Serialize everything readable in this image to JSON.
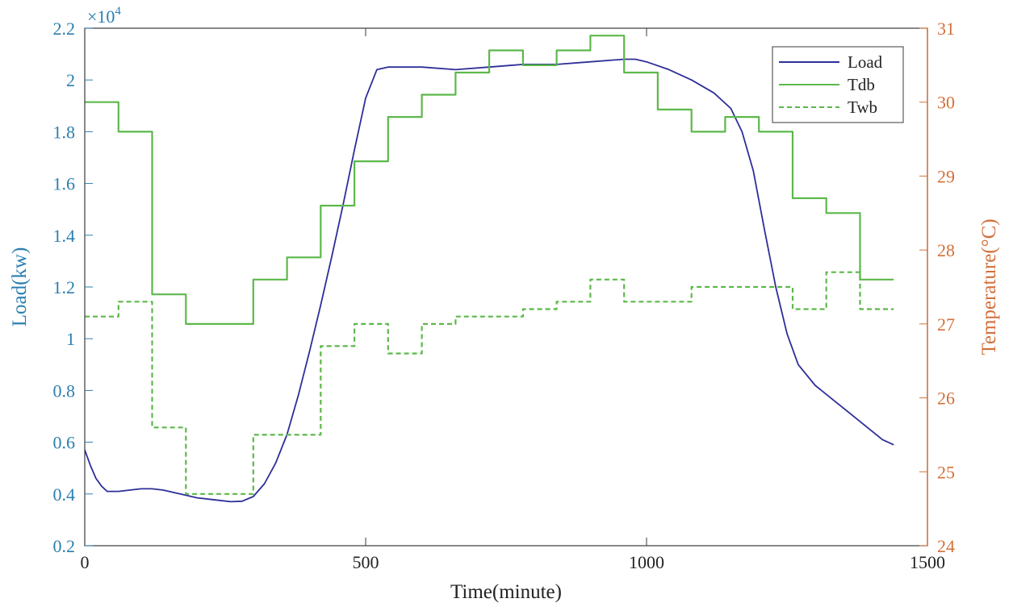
{
  "chart_data": {
    "type": "line",
    "title": "",
    "xlabel": "Time(minute)",
    "ylabel_left": "Load(kw)",
    "ylabel_right": "Temperature(°C)",
    "left_axis_multiplier": "×10",
    "left_axis_exponent": "4",
    "xlim": [
      0,
      1500
    ],
    "ylim_left": [
      0.2,
      2.2
    ],
    "ylim_right": [
      24,
      31
    ],
    "x_ticks": [
      0,
      500,
      1000,
      1500
    ],
    "x_tick_labels": [
      "0",
      "500",
      "1000",
      "1500"
    ],
    "y_left_ticks": [
      0.2,
      0.4,
      0.6,
      0.8,
      1.0,
      1.2,
      1.4,
      1.6,
      1.8,
      2.0,
      2.2
    ],
    "y_left_tick_labels": [
      "0.2",
      "0.4",
      "0.6",
      "0.8",
      "1",
      "1.2",
      "1.4",
      "1.6",
      "1.8",
      "2",
      "2.2"
    ],
    "y_right_ticks": [
      24,
      25,
      26,
      27,
      28,
      29,
      30,
      31
    ],
    "y_right_tick_labels": [
      "24",
      "25",
      "26",
      "27",
      "28",
      "29",
      "30",
      "31"
    ],
    "grid": false,
    "legend_position": "top-right",
    "colors": {
      "load": "#2e2e9a",
      "tdb": "#5cb84a",
      "twb": "#5cb84a",
      "left_axis": "#2a7fb0",
      "right_axis": "#d2703a",
      "frame": "#3a3a3a",
      "text": "#222222"
    },
    "series": [
      {
        "name": "Load",
        "axis": "left",
        "style": "solid",
        "x": [
          0,
          10,
          20,
          30,
          40,
          60,
          80,
          100,
          120,
          140,
          160,
          180,
          200,
          220,
          240,
          260,
          280,
          300,
          320,
          340,
          360,
          380,
          400,
          420,
          440,
          460,
          480,
          500,
          520,
          540,
          560,
          580,
          600,
          660,
          720,
          780,
          840,
          900,
          960,
          980,
          1000,
          1040,
          1080,
          1120,
          1150,
          1170,
          1190,
          1210,
          1230,
          1250,
          1270,
          1300,
          1340,
          1380,
          1420,
          1440
        ],
        "y": [
          0.57,
          0.51,
          0.46,
          0.43,
          0.41,
          0.41,
          0.415,
          0.42,
          0.42,
          0.415,
          0.405,
          0.395,
          0.385,
          0.38,
          0.375,
          0.37,
          0.372,
          0.39,
          0.44,
          0.52,
          0.63,
          0.78,
          0.95,
          1.13,
          1.32,
          1.52,
          1.73,
          1.93,
          2.04,
          2.05,
          2.05,
          2.05,
          2.05,
          2.04,
          2.05,
          2.06,
          2.06,
          2.07,
          2.08,
          2.08,
          2.07,
          2.04,
          2.0,
          1.95,
          1.89,
          1.8,
          1.65,
          1.42,
          1.2,
          1.02,
          0.9,
          0.82,
          0.75,
          0.68,
          0.61,
          0.59
        ]
      },
      {
        "name": "Tdb",
        "axis": "right",
        "style": "solid",
        "x": [
          0,
          60,
          60,
          120,
          120,
          180,
          180,
          300,
          300,
          360,
          360,
          420,
          420,
          480,
          480,
          540,
          540,
          600,
          600,
          660,
          660,
          720,
          720,
          780,
          780,
          840,
          840,
          900,
          900,
          960,
          960,
          1020,
          1020,
          1080,
          1080,
          1140,
          1140,
          1200,
          1200,
          1260,
          1260,
          1320,
          1320,
          1380,
          1380,
          1440
        ],
        "y": [
          30.0,
          30.0,
          29.6,
          29.6,
          27.4,
          27.4,
          27.0,
          27.0,
          27.6,
          27.6,
          27.9,
          27.9,
          28.6,
          28.6,
          29.2,
          29.2,
          29.8,
          29.8,
          30.1,
          30.1,
          30.4,
          30.4,
          30.7,
          30.7,
          30.5,
          30.5,
          30.7,
          30.7,
          30.9,
          30.9,
          30.4,
          30.4,
          29.9,
          29.9,
          29.6,
          29.6,
          29.8,
          29.8,
          29.6,
          29.6,
          28.7,
          28.7,
          28.5,
          28.5,
          27.6,
          27.6
        ]
      },
      {
        "name": "Twb",
        "axis": "right",
        "style": "dashed",
        "x": [
          0,
          60,
          60,
          120,
          120,
          180,
          180,
          300,
          300,
          360,
          360,
          420,
          420,
          480,
          480,
          540,
          540,
          600,
          600,
          660,
          660,
          720,
          720,
          780,
          780,
          840,
          840,
          900,
          900,
          960,
          960,
          1020,
          1020,
          1080,
          1080,
          1140,
          1140,
          1200,
          1200,
          1260,
          1260,
          1320,
          1320,
          1380,
          1380,
          1440
        ],
        "y": [
          27.1,
          27.1,
          27.3,
          27.3,
          25.6,
          25.6,
          24.7,
          24.7,
          25.5,
          25.5,
          25.5,
          25.5,
          26.7,
          26.7,
          27.0,
          27.0,
          26.6,
          26.6,
          27.0,
          27.0,
          27.1,
          27.1,
          27.1,
          27.1,
          27.2,
          27.2,
          27.3,
          27.3,
          27.6,
          27.6,
          27.3,
          27.3,
          27.3,
          27.3,
          27.5,
          27.5,
          27.5,
          27.5,
          27.5,
          27.5,
          27.2,
          27.2,
          27.7,
          27.7,
          27.2,
          27.2
        ]
      }
    ]
  }
}
